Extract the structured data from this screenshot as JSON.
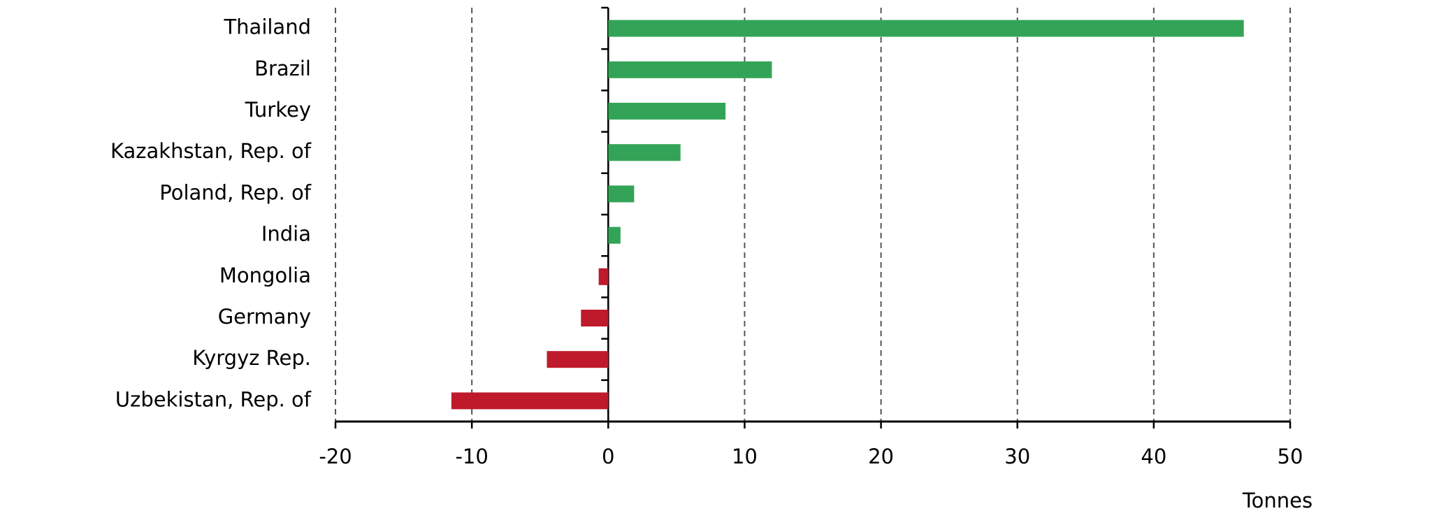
{
  "chart_data": {
    "type": "hbar",
    "categories": [
      "Thailand",
      "Brazil",
      "Turkey",
      "Kazakhstan, Rep. of",
      "Poland, Rep. of",
      "India",
      "Mongolia",
      "Germany",
      "Kyrgyz Rep.",
      "Uzbekistan, Rep. of"
    ],
    "values": [
      46.6,
      12.0,
      8.6,
      5.3,
      1.9,
      0.9,
      -0.7,
      -2.0,
      -4.5,
      -11.5
    ],
    "positive_color": "#33a457",
    "negative_color": "#be1a2b",
    "xlim": [
      -20,
      50
    ],
    "xticks": [
      -20,
      -10,
      0,
      10,
      20,
      30,
      40,
      50
    ],
    "xlabel": "Tonnes",
    "grid": true
  }
}
